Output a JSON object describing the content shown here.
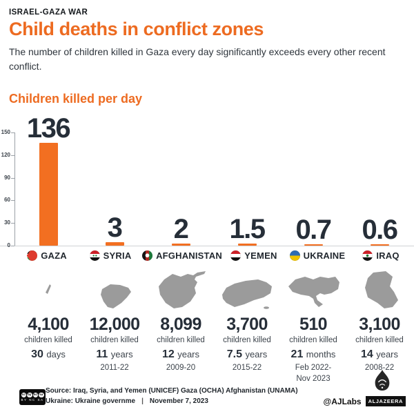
{
  "header": {
    "kicker": "ISRAEL-GAZA WAR",
    "title": "Child deaths in conflict zones",
    "subtitle": "The number of children killed in Gaza every day significantly exceeds every other recent conflict."
  },
  "chart_data": {
    "type": "bar",
    "title": "Children killed per day",
    "categories": [
      "GAZA",
      "SYRIA",
      "AFGHANISTAN",
      "YEMEN",
      "UKRAINE",
      "IRAQ"
    ],
    "values": [
      136,
      3,
      2,
      1.5,
      0.7,
      0.6
    ],
    "xlabel": "",
    "ylabel": "",
    "ylim": [
      0,
      150
    ],
    "yticks": [
      0,
      30,
      60,
      90,
      120,
      150
    ],
    "grid": false,
    "legend": "none",
    "bar_color": "#F26F21"
  },
  "countries": [
    {
      "name": "GAZA",
      "flag": "palestine-flag",
      "killed": "4,100",
      "killed_caption": "children killed",
      "duration_value": "30",
      "duration_unit": "days",
      "period_line1": "",
      "period_line2": ""
    },
    {
      "name": "SYRIA",
      "flag": "syria-flag",
      "killed": "12,000",
      "killed_caption": "children killed",
      "duration_value": "11",
      "duration_unit": "years",
      "period_line1": "2011-22",
      "period_line2": ""
    },
    {
      "name": "AFGHANISTAN",
      "flag": "afghanistan-flag",
      "killed": "8,099",
      "killed_caption": "children killed",
      "duration_value": "12",
      "duration_unit": "years",
      "period_line1": "2009-20",
      "period_line2": ""
    },
    {
      "name": "YEMEN",
      "flag": "yemen-flag",
      "killed": "3,700",
      "killed_caption": "children killed",
      "duration_value": "7.5",
      "duration_unit": "years",
      "period_line1": "2015-22",
      "period_line2": ""
    },
    {
      "name": "UKRAINE",
      "flag": "ukraine-flag",
      "killed": "510",
      "killed_caption": "children killed",
      "duration_value": "21",
      "duration_unit": "months",
      "period_line1": "Feb 2022-",
      "period_line2": "Nov 2023"
    },
    {
      "name": "IRAQ",
      "flag": "iraq-flag",
      "killed": "3,100",
      "killed_caption": "children killed",
      "duration_value": "14",
      "duration_unit": "years",
      "period_line1": "2008-22",
      "period_line2": ""
    }
  ],
  "footer": {
    "license_icons": [
      "cc",
      "by",
      "nc",
      "sa"
    ],
    "license_terms": "BY NC SA",
    "source_line1": "Source: Iraq, Syria, and Yemen (UNICEF) Gaza (OCHA) Afghanistan (UNAMA)",
    "source_line2": "Ukraine: Ukraine governme",
    "separator": "|",
    "date": "November 7, 2023",
    "credit": "@AJLabs",
    "brand": "ALJAZEERA"
  },
  "colors": {
    "accent": "#ED6B21",
    "bar": "#F26F21",
    "dark": "#262E38",
    "map_gray": "#9B9B9B"
  }
}
